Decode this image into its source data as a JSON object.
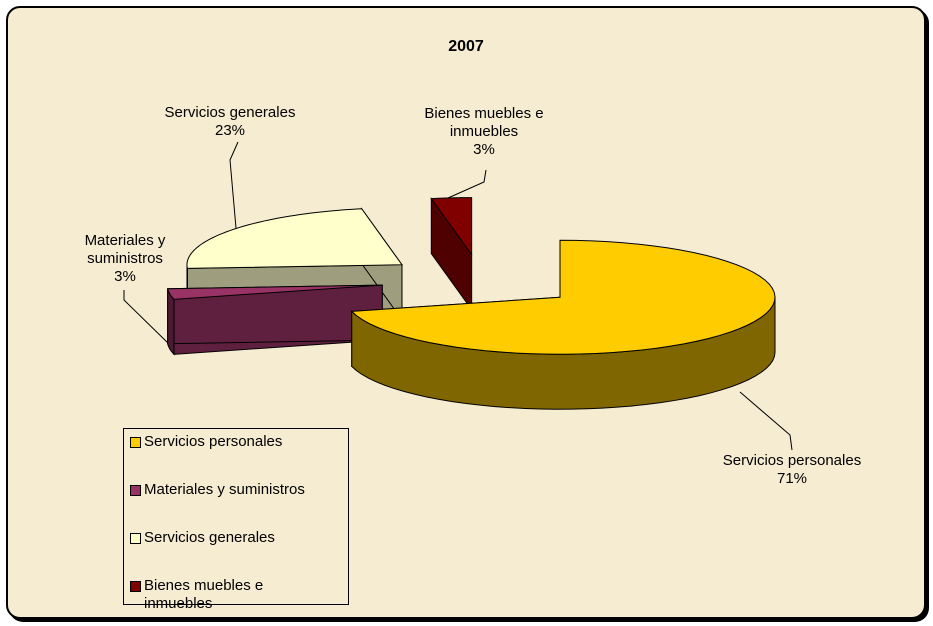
{
  "chart_data": {
    "type": "pie3d",
    "title": "2007",
    "categories": [
      "Servicios personales",
      "Materiales y suministros",
      "Servicios generales",
      "Bienes muebles e inmuebles"
    ],
    "values": [
      71,
      3,
      23,
      3
    ],
    "value_labels": [
      "71%",
      "3%",
      "23%",
      "3%"
    ],
    "colors": [
      "#FFCC00",
      "#993366",
      "#FFFFCC",
      "#800000"
    ],
    "legend": "bottom-left"
  }
}
